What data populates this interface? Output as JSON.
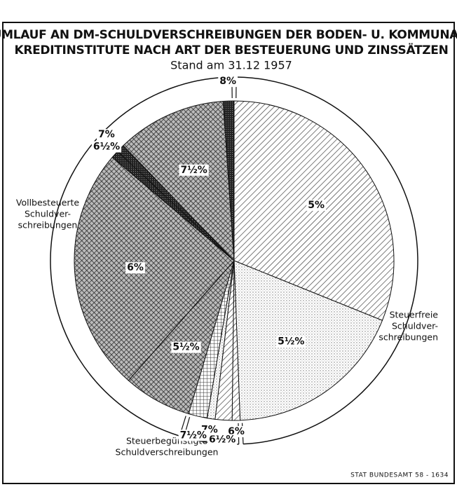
{
  "chart_data": {
    "type": "pie",
    "title": [
      "UMLAUF AN DM-SCHULDVERSCHREIBUNGEN DER BODEN- U. KOMMUNAL-",
      "KREDITINSTITUTE NACH ART DER BESTEUERUNG UND ZINSSÄTZEN"
    ],
    "subtitle": "Stand am 31.12 1957",
    "groups": [
      {
        "label": [
          "Steuerfreie",
          "Schuldver-",
          "schreibungen"
        ],
        "categories": [
          "5%",
          "5½%"
        ],
        "values": [
          31.1,
          18.3
        ],
        "fills": [
          "hatch",
          "dots"
        ]
      },
      {
        "label": [
          "Steuerbegünstigte",
          "Schuldverschreibungen"
        ],
        "categories": [
          "6%",
          "6½%",
          "7%",
          "7½%"
        ],
        "values": [
          0.8,
          1.7,
          0.8,
          1.9
        ],
        "fills": [
          "hatch",
          "hatch",
          "dots",
          "grid"
        ]
      },
      {
        "label": [
          "Vollbesteuerte",
          "Schuldver-",
          "schreibungen"
        ],
        "categories": [
          "5½%",
          "6%",
          "6½%",
          "7%",
          "7½%",
          "8%"
        ],
        "values": [
          6.9,
          24.7,
          0.8,
          0.8,
          11.1,
          1.1
        ],
        "fills": [
          "cross",
          "cross",
          "dark",
          "dark",
          "cross",
          "dark"
        ]
      }
    ],
    "footer": "STAT BUNDESAMT 58 - 1634"
  }
}
